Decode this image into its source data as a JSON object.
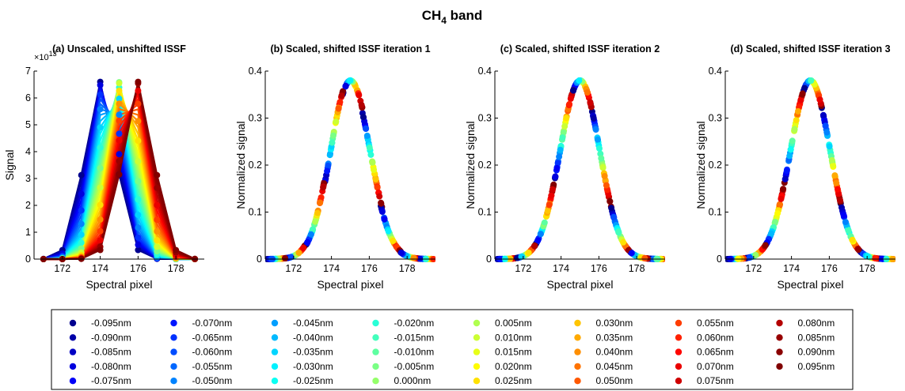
{
  "figure": {
    "title_main": "CH",
    "title_sub": "4",
    "title_rest": " band"
  },
  "chart_data": [
    {
      "type": "line",
      "title": "(a) Unscaled, unshifted ISSF",
      "xlabel": "Spectral pixel",
      "ylabel": "Signal",
      "exponent_label": "×10",
      "exponent_power": "13",
      "xlim": [
        170.5,
        179.5
      ],
      "ylim": [
        0,
        7
      ],
      "xticks": [
        172,
        174,
        176,
        178
      ],
      "yticks": [
        0,
        1,
        2,
        3,
        4,
        5,
        6,
        7
      ],
      "pixels": [
        171,
        172,
        173,
        174,
        175,
        176,
        177,
        178,
        179
      ],
      "series_model": {
        "shift_min": -0.095,
        "shift_max": 0.095,
        "step": 0.005,
        "peak": 6.6,
        "center": 175.0,
        "sigma": 0.82,
        "shift_scale": 10.5
      },
      "legend": "none",
      "grid": false
    },
    {
      "type": "scatter",
      "title": "(b) Scaled, shifted ISSF iteration 1",
      "xlabel": "Spectral pixel",
      "ylabel": "Normalized signal",
      "xlim": [
        170.5,
        179.5
      ],
      "ylim": [
        0,
        0.4
      ],
      "xticks": [
        172,
        174,
        176,
        178
      ],
      "yticks": [
        0,
        0.1,
        0.2,
        0.3,
        0.4
      ],
      "curve": {
        "center": 175.0,
        "sigma": 1.05,
        "peak": 0.38
      },
      "residual_spread": 0.12
    },
    {
      "type": "scatter",
      "title": "(c) Scaled, shifted ISSF iteration 2",
      "xlabel": "Spectral pixel",
      "ylabel": "Normalized signal",
      "xlim": [
        170.5,
        179.5
      ],
      "ylim": [
        0,
        0.4
      ],
      "xticks": [
        172,
        174,
        176,
        178
      ],
      "yticks": [
        0,
        0.1,
        0.2,
        0.3,
        0.4
      ],
      "curve": {
        "center": 175.0,
        "sigma": 1.05,
        "peak": 0.38
      },
      "residual_spread": 0.02
    },
    {
      "type": "scatter",
      "title": "(d) Scaled, shifted ISSF iteration 3",
      "xlabel": "Spectral pixel",
      "ylabel": "Normalized signal",
      "xlim": [
        170.5,
        179.5
      ],
      "ylim": [
        0,
        0.4
      ],
      "xticks": [
        172,
        174,
        176,
        178
      ],
      "yticks": [
        0,
        0.1,
        0.2,
        0.3,
        0.4
      ],
      "curve": {
        "center": 175.0,
        "sigma": 1.05,
        "peak": 0.38
      },
      "residual_spread": 0.01
    }
  ],
  "legend": {
    "entries": [
      {
        "label": "-0.095nm",
        "color": "#00008f"
      },
      {
        "label": "-0.090nm",
        "color": "#0000a8"
      },
      {
        "label": "-0.085nm",
        "color": "#0000c4"
      },
      {
        "label": "-0.080nm",
        "color": "#0000de"
      },
      {
        "label": "-0.075nm",
        "color": "#0000f8"
      },
      {
        "label": "-0.070nm",
        "color": "#0015ff"
      },
      {
        "label": "-0.065nm",
        "color": "#0031ff"
      },
      {
        "label": "-0.060nm",
        "color": "#004cff"
      },
      {
        "label": "-0.055nm",
        "color": "#0067ff"
      },
      {
        "label": "-0.050nm",
        "color": "#0083ff"
      },
      {
        "label": "-0.045nm",
        "color": "#009fff"
      },
      {
        "label": "-0.040nm",
        "color": "#00baff"
      },
      {
        "label": "-0.035nm",
        "color": "#00d5ff"
      },
      {
        "label": "-0.030nm",
        "color": "#00f1ff"
      },
      {
        "label": "-0.025nm",
        "color": "#0cfff3"
      },
      {
        "label": "-0.020nm",
        "color": "#28ffd7"
      },
      {
        "label": "-0.015nm",
        "color": "#43ffbc"
      },
      {
        "label": "-0.010nm",
        "color": "#5effa1"
      },
      {
        "label": "-0.005nm",
        "color": "#7aff85"
      },
      {
        "label": "0.000nm",
        "color": "#95ff6a"
      },
      {
        "label": "0.005nm",
        "color": "#b0ff4f"
      },
      {
        "label": "0.010nm",
        "color": "#ccff33"
      },
      {
        "label": "0.015nm",
        "color": "#e7ff18"
      },
      {
        "label": "0.020nm",
        "color": "#fffc00"
      },
      {
        "label": "0.025nm",
        "color": "#ffe100"
      },
      {
        "label": "0.030nm",
        "color": "#ffc500"
      },
      {
        "label": "0.035nm",
        "color": "#ffaa00"
      },
      {
        "label": "0.040nm",
        "color": "#ff8f00"
      },
      {
        "label": "0.045nm",
        "color": "#ff7300"
      },
      {
        "label": "0.050nm",
        "color": "#ff5800"
      },
      {
        "label": "0.055nm",
        "color": "#ff3d00"
      },
      {
        "label": "0.060nm",
        "color": "#ff2100"
      },
      {
        "label": "0.065nm",
        "color": "#ff0600"
      },
      {
        "label": "0.070nm",
        "color": "#ea0000"
      },
      {
        "label": "0.075nm",
        "color": "#cf0000"
      },
      {
        "label": "0.080nm",
        "color": "#b40000"
      },
      {
        "label": "0.085nm",
        "color": "#980000"
      },
      {
        "label": "0.090nm",
        "color": "#8a0000"
      },
      {
        "label": "0.095nm",
        "color": "#800000"
      }
    ],
    "rows": 5
  }
}
